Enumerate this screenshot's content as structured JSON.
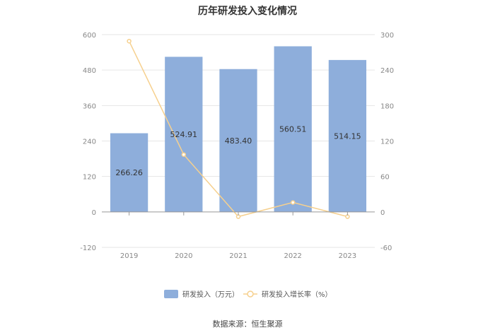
{
  "chart_data": {
    "type": "bar",
    "title": "历年研发投入变化情况",
    "categories": [
      "2019",
      "2020",
      "2021",
      "2022",
      "2023"
    ],
    "series": [
      {
        "name": "研发投入（万元）",
        "type": "bar",
        "axis": "left",
        "color": "#8eaedb",
        "values": [
          266.26,
          524.91,
          483.4,
          560.51,
          514.15
        ],
        "labels": [
          "266.26",
          "524.91",
          "483.40",
          "560.51",
          "514.15"
        ]
      },
      {
        "name": "研发投入增长率（%）",
        "type": "line",
        "axis": "right",
        "color": "#f6d08e",
        "values": [
          289,
          97,
          -8,
          16,
          -8
        ]
      }
    ],
    "y_left": {
      "range": [
        -120,
        600
      ],
      "ticks": [
        "600",
        "480",
        "360",
        "240",
        "120",
        "0",
        "-120"
      ]
    },
    "y_right": {
      "range": [
        -60,
        300
      ],
      "ticks": [
        "300",
        "240",
        "180",
        "120",
        "60",
        "0",
        "-60"
      ]
    },
    "grid": true,
    "legend_position": "bottom"
  },
  "source_text": "数据来源：恒生聚源"
}
